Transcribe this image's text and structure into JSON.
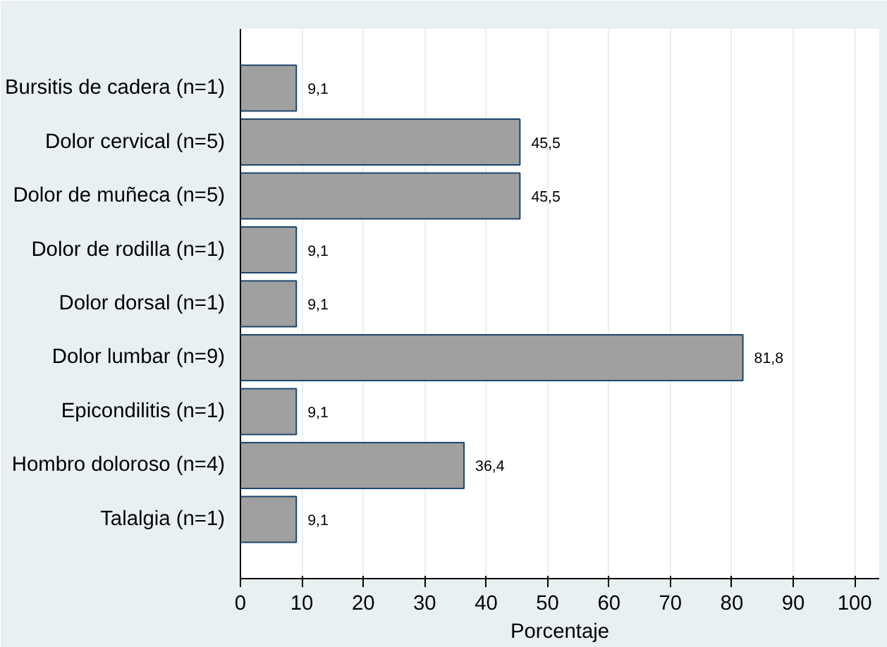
{
  "chart_data": {
    "type": "bar",
    "orientation": "horizontal",
    "xlabel": "Porcentaje",
    "categories": [
      "Bursitis de cadera (n=1)",
      "Dolor cervical (n=5)",
      "Dolor de muñeca (n=5)",
      "Dolor de rodilla (n=1)",
      "Dolor dorsal (n=1)",
      "Dolor lumbar (n=9)",
      "Epicondilitis (n=1)",
      "Hombro doloroso (n=4)",
      "Talalgia (n=1)"
    ],
    "values": [
      9.1,
      45.5,
      45.5,
      9.1,
      9.1,
      81.8,
      9.1,
      36.4,
      9.1
    ],
    "value_labels": [
      "9,1",
      "45,5",
      "45,5",
      "9,1",
      "9,1",
      "81,8",
      "9,1",
      "36,4",
      "9,1"
    ],
    "color": "#a0a0a0",
    "xlim": [
      0,
      104
    ],
    "xticks": [
      0,
      10,
      20,
      30,
      40,
      50,
      60,
      70,
      80,
      90,
      100
    ],
    "grid": "x"
  }
}
